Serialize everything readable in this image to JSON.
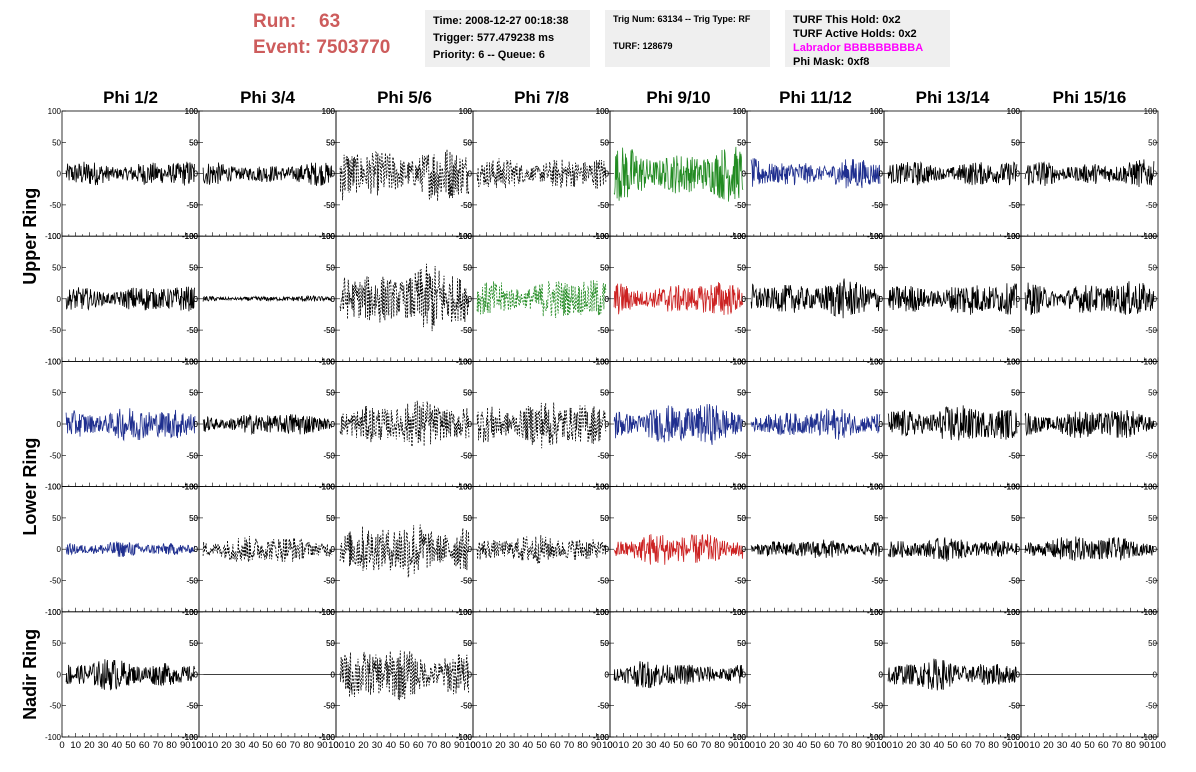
{
  "header": {
    "run_label": "Run:",
    "run_value": "63",
    "event_label": "Event:",
    "event_value": "7503770",
    "time": "Time: 2008-12-27 00:18:38",
    "trigger": "Trigger: 577.479238 ms",
    "priority_queue": "Priority: 6 -- Queue: 6",
    "trig_num_type": "Trig Num: 63134 -- Trig Type: RF",
    "turf": "TURF: 128679",
    "turf_this_hold": "TURF This Hold: 0x2",
    "turf_active_holds": "TURF Active Holds: 0x2",
    "labrador": "Labrador BBBBBBBBBA",
    "phi_mask": "Phi Mask: 0xf8"
  },
  "colors": {
    "run_text": "#cd5c5c",
    "labrador_text": "#ff00ff",
    "info_box_bg": "#efefef",
    "trace_default": "#000000",
    "trace_green": "#228b22",
    "trace_blue": "#1f2f8f",
    "trace_red": "#cc2222"
  },
  "chart_data": {
    "type": "line",
    "description_columns": [
      "Phi 1/2",
      "Phi 3/4",
      "Phi 5/6",
      "Phi 7/8",
      "Phi 9/10",
      "Phi 11/12",
      "Phi 13/14",
      "Phi 15/16"
    ],
    "row_groups": [
      "Upper Ring",
      "Lower Ring",
      "Nadir Ring"
    ],
    "xlim": [
      0,
      100
    ],
    "ylim": [
      -100,
      100
    ],
    "x_tick_labels": [
      "0",
      "10",
      "20",
      "30",
      "40",
      "50",
      "60",
      "70",
      "80",
      "90",
      "100"
    ],
    "y_tick_labels": [
      "100",
      "50",
      "0",
      "-50",
      "-100"
    ],
    "panels": [
      [
        {
          "color": "black",
          "style": "solid",
          "amp": 14
        },
        {
          "color": "black",
          "style": "solid",
          "amp": 12
        },
        {
          "color": "black",
          "style": "dashed",
          "amp": 30
        },
        {
          "color": "black",
          "style": "dashed",
          "amp": 18
        },
        {
          "color": "green",
          "style": "solid",
          "amp": 28
        },
        {
          "color": "blue",
          "style": "solid",
          "amp": 16
        },
        {
          "color": "black",
          "style": "solid",
          "amp": 14
        },
        {
          "color": "black",
          "style": "solid",
          "amp": 14
        }
      ],
      [
        {
          "color": "black",
          "style": "solid",
          "amp": 14
        },
        {
          "color": "black",
          "style": "solid",
          "amp": 3
        },
        {
          "color": "black",
          "style": "dashed",
          "amp": 35
        },
        {
          "color": "green",
          "style": "dashed",
          "amp": 22
        },
        {
          "color": "red",
          "style": "solid",
          "amp": 18
        },
        {
          "color": "black",
          "style": "solid",
          "amp": 20
        },
        {
          "color": "black",
          "style": "solid",
          "amp": 18
        },
        {
          "color": "black",
          "style": "solid",
          "amp": 18
        }
      ],
      [
        {
          "color": "blue",
          "style": "solid",
          "amp": 18
        },
        {
          "color": "black",
          "style": "solid",
          "amp": 12
        },
        {
          "color": "black",
          "style": "dashed",
          "amp": 25
        },
        {
          "color": "black",
          "style": "dashed",
          "amp": 25
        },
        {
          "color": "blue",
          "style": "solid",
          "amp": 22
        },
        {
          "color": "blue",
          "style": "solid",
          "amp": 16
        },
        {
          "color": "black",
          "style": "solid",
          "amp": 20
        },
        {
          "color": "black",
          "style": "solid",
          "amp": 16
        }
      ],
      [
        {
          "color": "blue",
          "style": "solid",
          "amp": 8
        },
        {
          "color": "black",
          "style": "dashed",
          "amp": 15
        },
        {
          "color": "black",
          "style": "dashed",
          "amp": 30
        },
        {
          "color": "black",
          "style": "dashed",
          "amp": 15
        },
        {
          "color": "red",
          "style": "solid",
          "amp": 18
        },
        {
          "color": "black",
          "style": "solid",
          "amp": 10
        },
        {
          "color": "black",
          "style": "solid",
          "amp": 12
        },
        {
          "color": "black",
          "style": "solid",
          "amp": 14
        }
      ],
      [
        {
          "color": "black",
          "style": "solid",
          "amp": 16
        },
        {
          "color": "black",
          "style": "solid",
          "amp": 0
        },
        {
          "color": "black",
          "style": "dashed",
          "amp": 28
        },
        null,
        {
          "color": "black",
          "style": "solid",
          "amp": 14
        },
        null,
        {
          "color": "black",
          "style": "solid",
          "amp": 16
        },
        {
          "color": "black",
          "style": "solid",
          "amp": 0
        }
      ]
    ]
  }
}
